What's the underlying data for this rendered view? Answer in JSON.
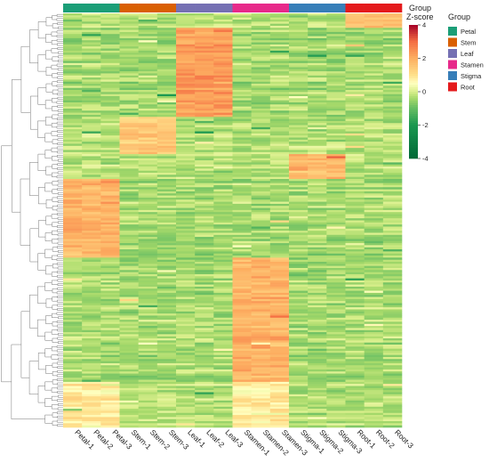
{
  "chart_data": {
    "type": "heatmap",
    "columns": [
      "Petal-1",
      "Petal-2",
      "Petal-3",
      "Stem-1",
      "Stem-2",
      "Stem-3",
      "Leaf-1",
      "Leaf-2",
      "Leaf-3",
      "Stamen-1",
      "Stamen-2",
      "Stamen-3",
      "Stigma-1",
      "Stigma-2",
      "Stigma-3",
      "Root-1",
      "Root-2",
      "Root-3"
    ],
    "column_groups": [
      "Petal",
      "Petal",
      "Petal",
      "Stem",
      "Stem",
      "Stem",
      "Leaf",
      "Leaf",
      "Leaf",
      "Stamen",
      "Stamen",
      "Stamen",
      "Stigma",
      "Stigma",
      "Stigma",
      "Root",
      "Root",
      "Root"
    ],
    "groups": [
      {
        "name": "Petal",
        "color": "#1b9e77"
      },
      {
        "name": "Stem",
        "color": "#d95f02"
      },
      {
        "name": "Leaf",
        "color": "#7570b3"
      },
      {
        "name": "Stamen",
        "color": "#e7298a"
      },
      {
        "name": "Stigma",
        "color": "#377eb8"
      },
      {
        "name": "Root",
        "color": "#e41a1c"
      }
    ],
    "row_count": 200,
    "row_clusters": [
      {
        "rows": [
          0,
          7
        ],
        "high_groups": [
          "Root"
        ],
        "z_high": 1.6,
        "z_other": -0.3
      },
      {
        "rows": [
          7,
          50
        ],
        "high_groups": [
          "Leaf"
        ],
        "z_high": 2.3,
        "z_other": -0.4
      },
      {
        "rows": [
          50,
          68
        ],
        "high_groups": [
          "Stem"
        ],
        "z_high": 1.4,
        "z_other": -0.3
      },
      {
        "rows": [
          68,
          80
        ],
        "high_groups": [
          "Stigma"
        ],
        "z_high": 1.7,
        "z_other": -0.3
      },
      {
        "rows": [
          80,
          118
        ],
        "high_groups": [
          "Petal"
        ],
        "z_high": 1.9,
        "z_other": -0.4
      },
      {
        "rows": [
          118,
          178
        ],
        "high_groups": [
          "Stamen"
        ],
        "z_high": 1.9,
        "z_other": -0.4
      },
      {
        "rows": [
          178,
          200
        ],
        "high_groups": [
          "Petal",
          "Stamen"
        ],
        "z_high": 0.8,
        "z_other": -0.3
      }
    ],
    "color_scale": {
      "min": -4,
      "max": 4,
      "stops": [
        {
          "v": -4,
          "c": "#006837"
        },
        {
          "v": -2,
          "c": "#1a9850"
        },
        {
          "v": -1,
          "c": "#66bd63"
        },
        {
          "v": -0.4,
          "c": "#a6d96a"
        },
        {
          "v": 0,
          "c": "#d9ef8b"
        },
        {
          "v": 0.5,
          "c": "#ffffbf"
        },
        {
          "v": 1,
          "c": "#fee08b"
        },
        {
          "v": 2,
          "c": "#fdae61"
        },
        {
          "v": 3,
          "c": "#f46d43"
        },
        {
          "v": 4,
          "c": "#a50026"
        }
      ]
    },
    "colorbar_ticks": [
      4,
      2,
      0,
      -2,
      -4
    ],
    "legend": {
      "group_title": "Group",
      "scale_title": "Z-score",
      "placement": "right"
    },
    "dendrogram": "rows, left side"
  }
}
